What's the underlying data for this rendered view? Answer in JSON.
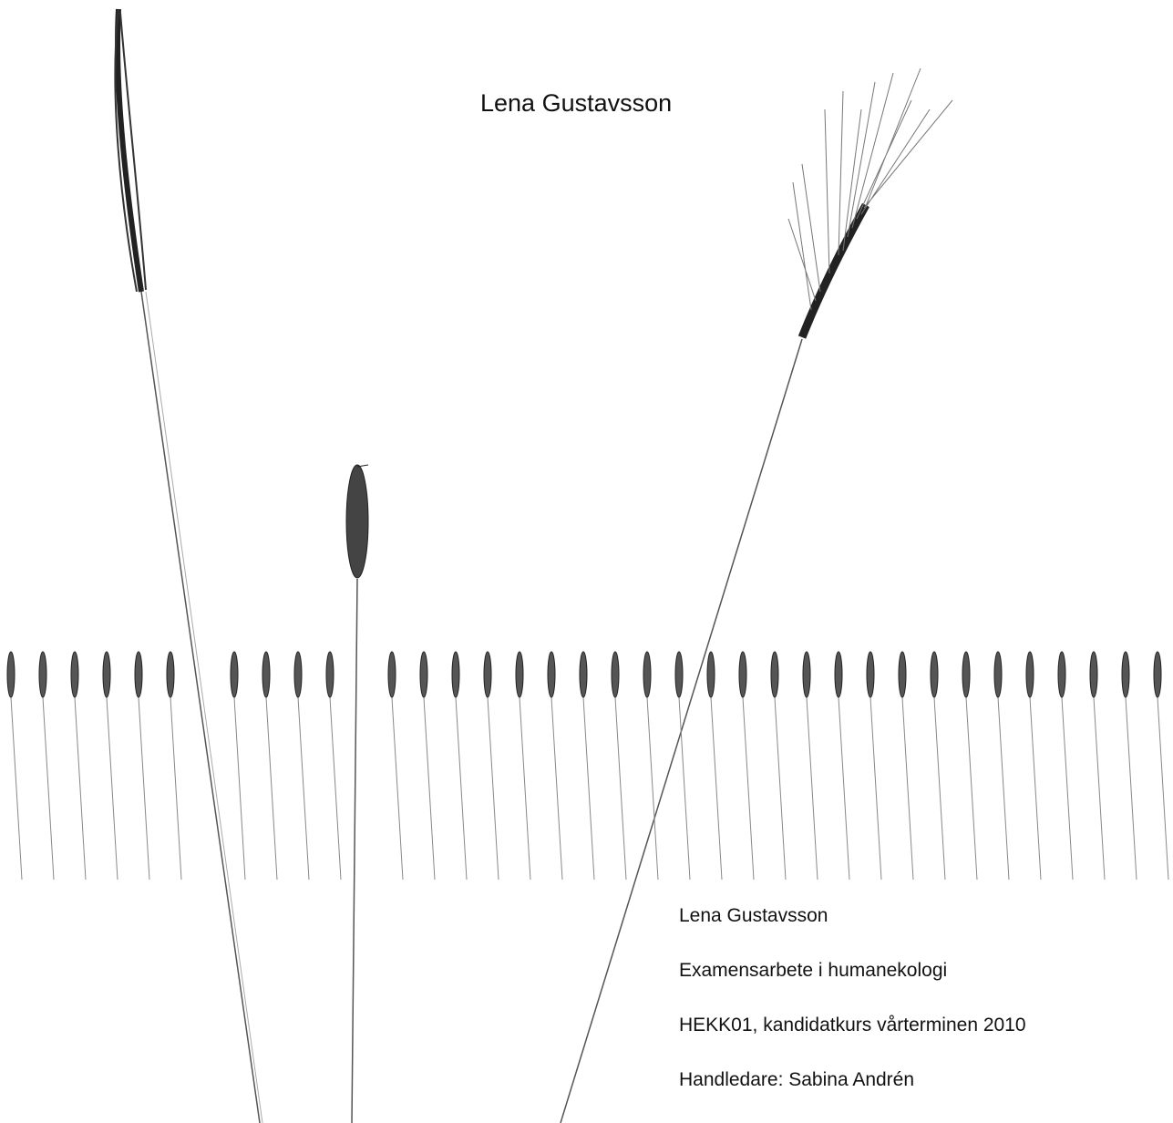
{
  "header": {
    "title": "Lena Gustavsson"
  },
  "info": {
    "lines": [
      "Lena Gustavsson",
      "Examensarbete i humanekologi",
      "HEKK01, kandidatkurs vårterminen 2010",
      "Handledare: Sabina Andrén"
    ]
  }
}
